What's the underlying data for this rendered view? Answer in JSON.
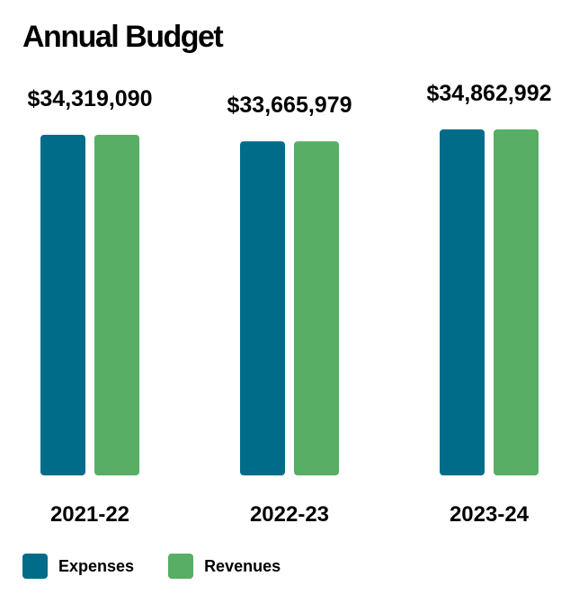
{
  "chart_data": {
    "type": "bar",
    "title": "Annual Budget",
    "categories": [
      "2021-22",
      "2022-23",
      "2023-24"
    ],
    "series": [
      {
        "name": "Expenses",
        "color": "#006C8A",
        "values": [
          34319090,
          33665979,
          34862992
        ]
      },
      {
        "name": "Revenues",
        "color": "#57AE64",
        "values": [
          34319090,
          33665979,
          34862992
        ]
      }
    ],
    "data_labels": [
      "$34,319,090",
      "$33,665,979",
      "$34,862,992"
    ],
    "ylim": [
      0,
      34862992
    ],
    "grid": false,
    "legend": "bottom-left"
  }
}
